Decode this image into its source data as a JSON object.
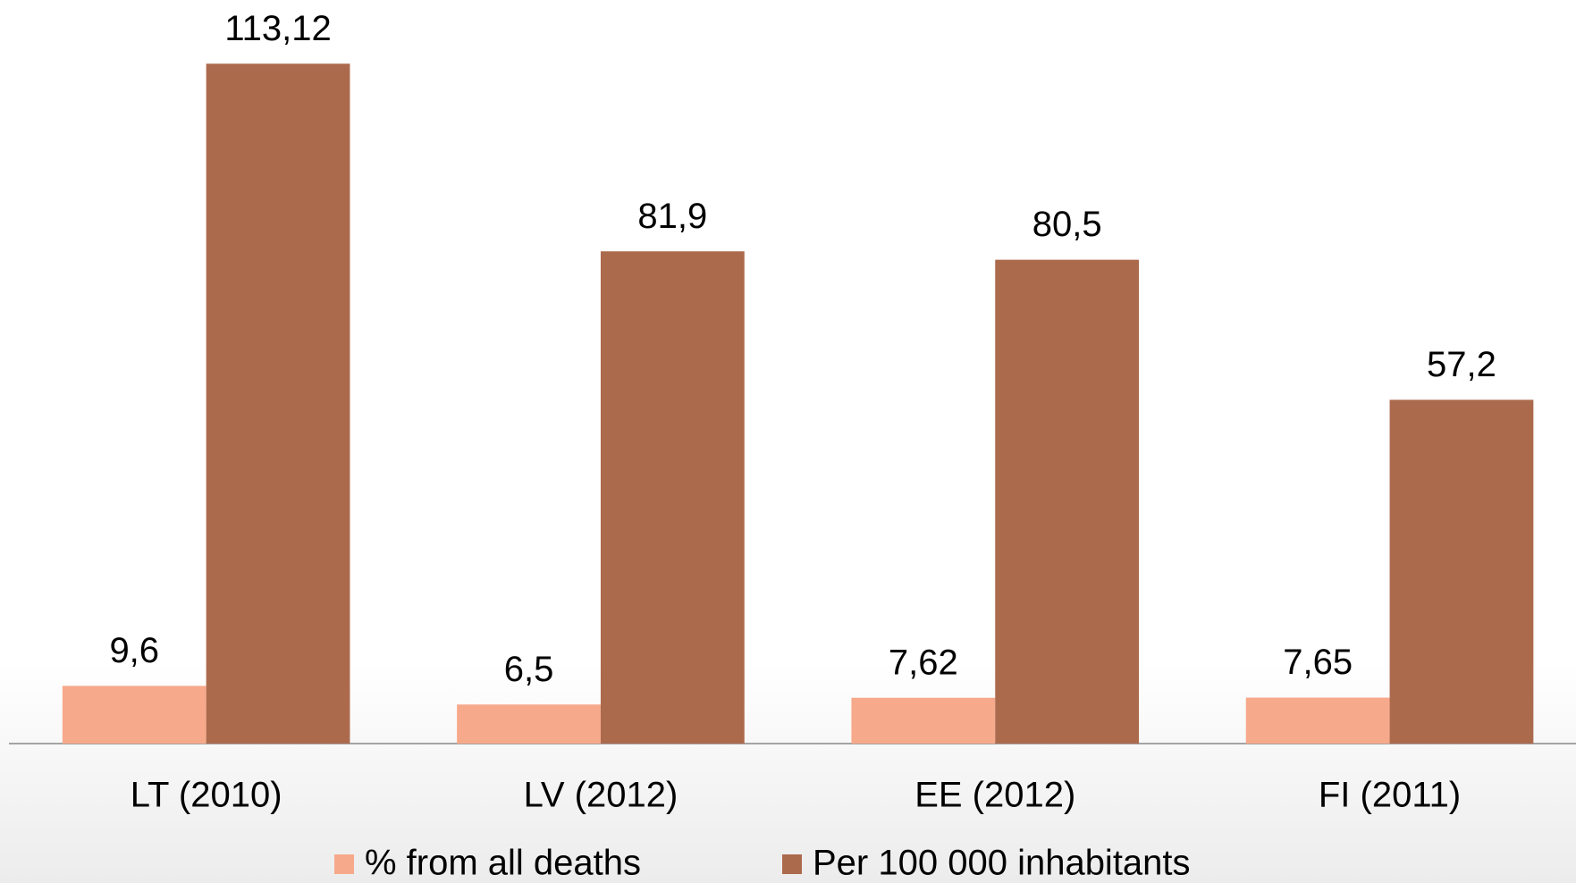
{
  "chart_data": {
    "type": "bar",
    "categories": [
      "LT (2010)",
      "LV (2012)",
      "EE (2012)",
      "FI (2011)"
    ],
    "series": [
      {
        "name": "% from all deaths",
        "color": "#f7a98b",
        "values": [
          9.6,
          6.5,
          7.62,
          7.65
        ],
        "value_labels": [
          "9,6",
          "6,5",
          "7,62",
          "7,65"
        ]
      },
      {
        "name": "Per 100 000 inhabitants",
        "color": "#ac6a4d",
        "values": [
          113.12,
          81.9,
          80.5,
          57.2
        ],
        "value_labels": [
          "113,12",
          "81,9",
          "80,5",
          "57,2"
        ]
      }
    ],
    "ylim": [
      0,
      120
    ],
    "legend": "bottom"
  }
}
